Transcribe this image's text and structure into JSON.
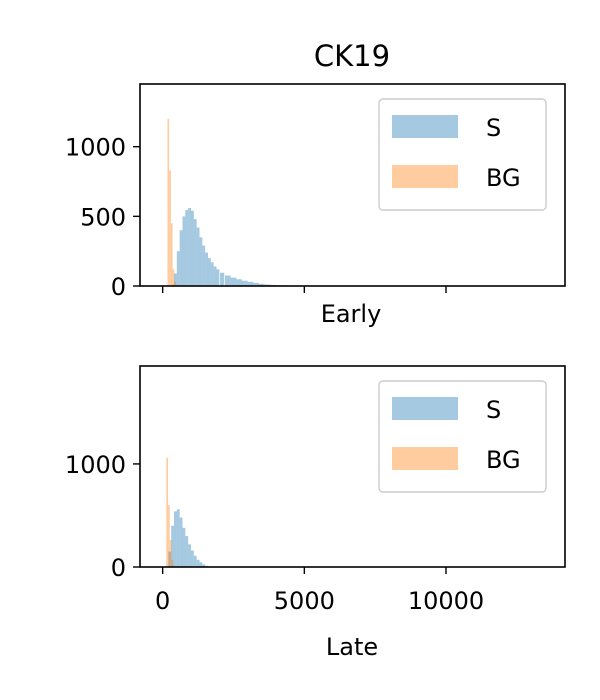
{
  "figure": {
    "title": "CK19"
  },
  "colors": {
    "signal": "#1f77b4",
    "background": "#ff7f0e",
    "signal_alpha": 0.4,
    "background_alpha": 0.4
  },
  "chart_data": [
    {
      "type": "histogram",
      "title": "CK19",
      "xlabel": "Early",
      "ylabel": "",
      "xlim": [
        -800,
        14200
      ],
      "ylim": [
        0,
        1450
      ],
      "x_ticks": [
        0,
        5000,
        10000
      ],
      "x_tick_labels_visible": false,
      "y_ticks": [
        0,
        500,
        1000
      ],
      "y_tick_labels": [
        "0",
        "500",
        "1000"
      ],
      "grid": false,
      "legend": {
        "position": "top-right",
        "entries": [
          "S",
          "BG"
        ]
      },
      "series": [
        {
          "name": "S",
          "bin_centers": [
            350,
            450,
            550,
            650,
            750,
            850,
            950,
            1050,
            1150,
            1250,
            1350,
            1450,
            1550,
            1650,
            1750,
            1850,
            1950,
            2100,
            2300,
            2500,
            2700,
            2900,
            3100,
            3300,
            3500,
            3700,
            3900,
            4200,
            4600,
            5000,
            5400
          ],
          "counts": [
            10,
            90,
            250,
            400,
            500,
            545,
            560,
            540,
            480,
            420,
            350,
            290,
            240,
            200,
            170,
            140,
            120,
            95,
            75,
            60,
            48,
            38,
            30,
            22,
            16,
            11,
            8,
            5,
            3,
            2,
            1
          ]
        },
        {
          "name": "BG",
          "bin_centers": [
            200,
            260,
            320,
            380,
            440,
            500
          ],
          "counts": [
            1200,
            830,
            450,
            120,
            30,
            8
          ]
        }
      ]
    },
    {
      "type": "histogram",
      "title": "",
      "xlabel": "Late",
      "ylabel": "",
      "xlim": [
        -800,
        14200
      ],
      "ylim": [
        0,
        1950
      ],
      "x_ticks": [
        0,
        5000,
        10000
      ],
      "x_tick_labels": [
        "0",
        "5000",
        "10000"
      ],
      "y_ticks": [
        0,
        1000
      ],
      "y_tick_labels": [
        "0",
        "1000"
      ],
      "grid": false,
      "legend": {
        "position": "top-right",
        "entries": [
          "S",
          "BG"
        ]
      },
      "series": [
        {
          "name": "S",
          "bin_centers": [
            250,
            350,
            450,
            550,
            650,
            750,
            850,
            950,
            1050,
            1150,
            1250,
            1350,
            1450,
            1550,
            1650,
            1750
          ],
          "counts": [
            150,
            400,
            540,
            560,
            480,
            380,
            300,
            220,
            160,
            110,
            70,
            45,
            25,
            12,
            6,
            3
          ]
        },
        {
          "name": "BG",
          "bin_centers": [
            160,
            220,
            280,
            340,
            400
          ],
          "counts": [
            1060,
            600,
            260,
            70,
            15
          ]
        }
      ]
    }
  ]
}
